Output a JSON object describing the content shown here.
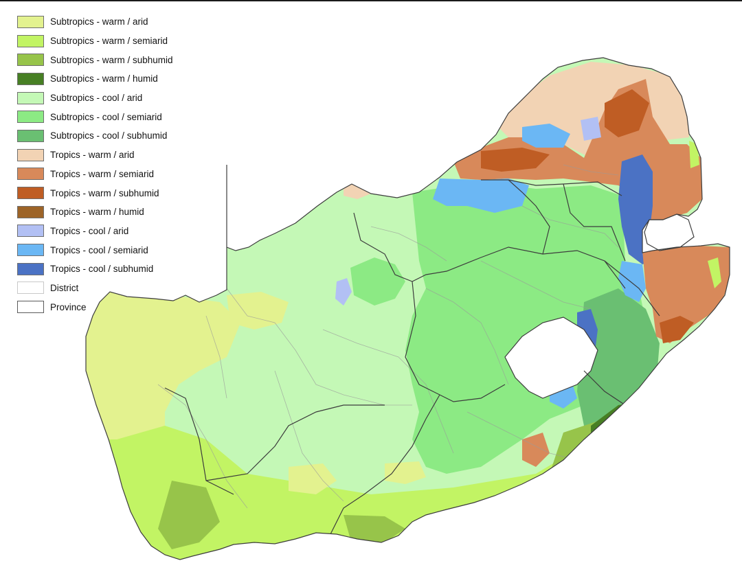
{
  "legend": {
    "items": [
      {
        "label": "Subtropics - warm / arid",
        "color": "#e3f28f"
      },
      {
        "label": "Subtropics - warm / semiarid",
        "color": "#c2f464"
      },
      {
        "label": "Subtropics - warm / subhumid",
        "color": "#97c44a"
      },
      {
        "label": "Subtropics - warm / humid",
        "color": "#477f24"
      },
      {
        "label": "Subtropics - cool / arid",
        "color": "#c4f8b6"
      },
      {
        "label": "Subtropics - cool / semiarid",
        "color": "#8cea84"
      },
      {
        "label": "Subtropics - cool / subhumid",
        "color": "#6abf72"
      },
      {
        "label": "Tropics - warm / arid",
        "color": "#f2d3b4"
      },
      {
        "label": "Tropics - warm / semiarid",
        "color": "#d8895a"
      },
      {
        "label": "Tropics - warm / subhumid",
        "color": "#bf5d24"
      },
      {
        "label": "Tropics - warm / humid",
        "color": "#9d6428"
      },
      {
        "label": "Tropics - cool / arid",
        "color": "#b2c0f4"
      },
      {
        "label": "Tropics - cool / semiarid",
        "color": "#6bb7f4"
      },
      {
        "label": "Tropics - cool / subhumid",
        "color": "#4b72c4"
      },
      {
        "label": "District",
        "color": "#ffffff"
      },
      {
        "label": "Province",
        "color": "#ffffff"
      }
    ]
  }
}
